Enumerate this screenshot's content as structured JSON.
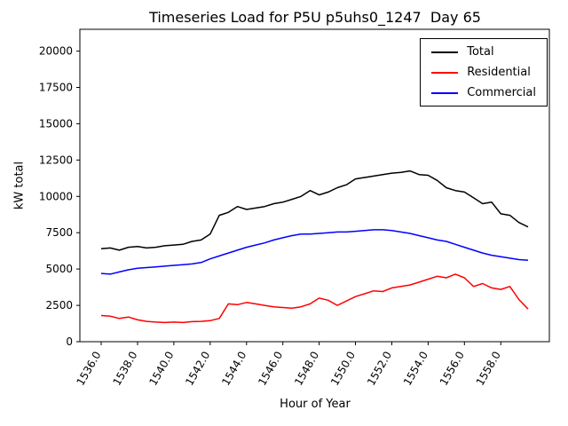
{
  "chart_data": {
    "type": "line",
    "title": "Timeseries Load for P5U p5uhs0_1247  Day 65",
    "xlabel": "Hour of Year",
    "ylabel": "kW total",
    "xlim": [
      1534.825,
      1560.675
    ],
    "ylim": [
      0,
      21500
    ],
    "grid": false,
    "legend_position": "upper right",
    "x_ticks": {
      "values": [
        1536,
        1538,
        1540,
        1542,
        1544,
        1546,
        1548,
        1550,
        1552,
        1554,
        1556,
        1558
      ],
      "labels": [
        "1536.0",
        "1538.0",
        "1540.0",
        "1542.0",
        "1544.0",
        "1546.0",
        "1548.0",
        "1550.0",
        "1552.0",
        "1554.0",
        "1556.0",
        "1558.0"
      ]
    },
    "y_ticks": {
      "values": [
        0,
        2500,
        5000,
        7500,
        10000,
        12500,
        15000,
        17500,
        20000
      ],
      "labels": [
        "0",
        "2500",
        "5000",
        "7500",
        "10000",
        "12500",
        "15000",
        "17500",
        "20000"
      ]
    },
    "x": [
      1536.0,
      1536.5,
      1537.0,
      1537.5,
      1538.0,
      1538.5,
      1539.0,
      1539.5,
      1540.0,
      1540.5,
      1541.0,
      1541.5,
      1542.0,
      1542.5,
      1543.0,
      1543.5,
      1544.0,
      1544.5,
      1545.0,
      1545.5,
      1546.0,
      1546.5,
      1547.0,
      1547.5,
      1548.0,
      1548.5,
      1549.0,
      1549.5,
      1550.0,
      1550.5,
      1551.0,
      1551.5,
      1552.0,
      1552.5,
      1553.0,
      1553.5,
      1554.0,
      1554.5,
      1555.0,
      1555.5,
      1556.0,
      1556.5,
      1557.0,
      1557.5,
      1558.0,
      1558.5,
      1559.0,
      1559.5
    ],
    "series": [
      {
        "name": "Total",
        "color": "#000000",
        "values": [
          6400,
          6450,
          6300,
          6500,
          6550,
          6450,
          6500,
          6600,
          6650,
          6700,
          6900,
          7000,
          7400,
          8700,
          8900,
          9300,
          9100,
          9200,
          9300,
          9500,
          9600,
          9800,
          10000,
          10400,
          10100,
          10300,
          10600,
          10800,
          11200,
          11300,
          11400,
          11500,
          11600,
          11650,
          11750,
          11500,
          11450,
          11100,
          10600,
          10400,
          10300,
          9900,
          9500,
          9600,
          8800,
          8700,
          8200,
          7900
        ]
      },
      {
        "name": "Residential",
        "color": "#ff0000",
        "values": [
          1800,
          1750,
          1600,
          1700,
          1500,
          1400,
          1350,
          1320,
          1350,
          1320,
          1380,
          1400,
          1450,
          1600,
          2600,
          2550,
          2700,
          2600,
          2500,
          2400,
          2350,
          2300,
          2400,
          2600,
          3000,
          2850,
          2500,
          2800,
          3100,
          3300,
          3500,
          3450,
          3700,
          3800,
          3900,
          4100,
          4300,
          4500,
          4400,
          4650,
          4400,
          3800,
          4000,
          3700,
          3600,
          3800,
          2900,
          2250
        ]
      },
      {
        "name": "Commercial",
        "color": "#0000ff",
        "values": [
          4700,
          4650,
          4800,
          4950,
          5050,
          5100,
          5150,
          5200,
          5250,
          5300,
          5350,
          5450,
          5700,
          5900,
          6100,
          6300,
          6500,
          6650,
          6800,
          7000,
          7150,
          7300,
          7400,
          7400,
          7450,
          7500,
          7550,
          7550,
          7600,
          7650,
          7700,
          7700,
          7650,
          7550,
          7450,
          7300,
          7150,
          7000,
          6900,
          6700,
          6500,
          6300,
          6100,
          5950,
          5850,
          5750,
          5650,
          5600
        ]
      }
    ]
  }
}
